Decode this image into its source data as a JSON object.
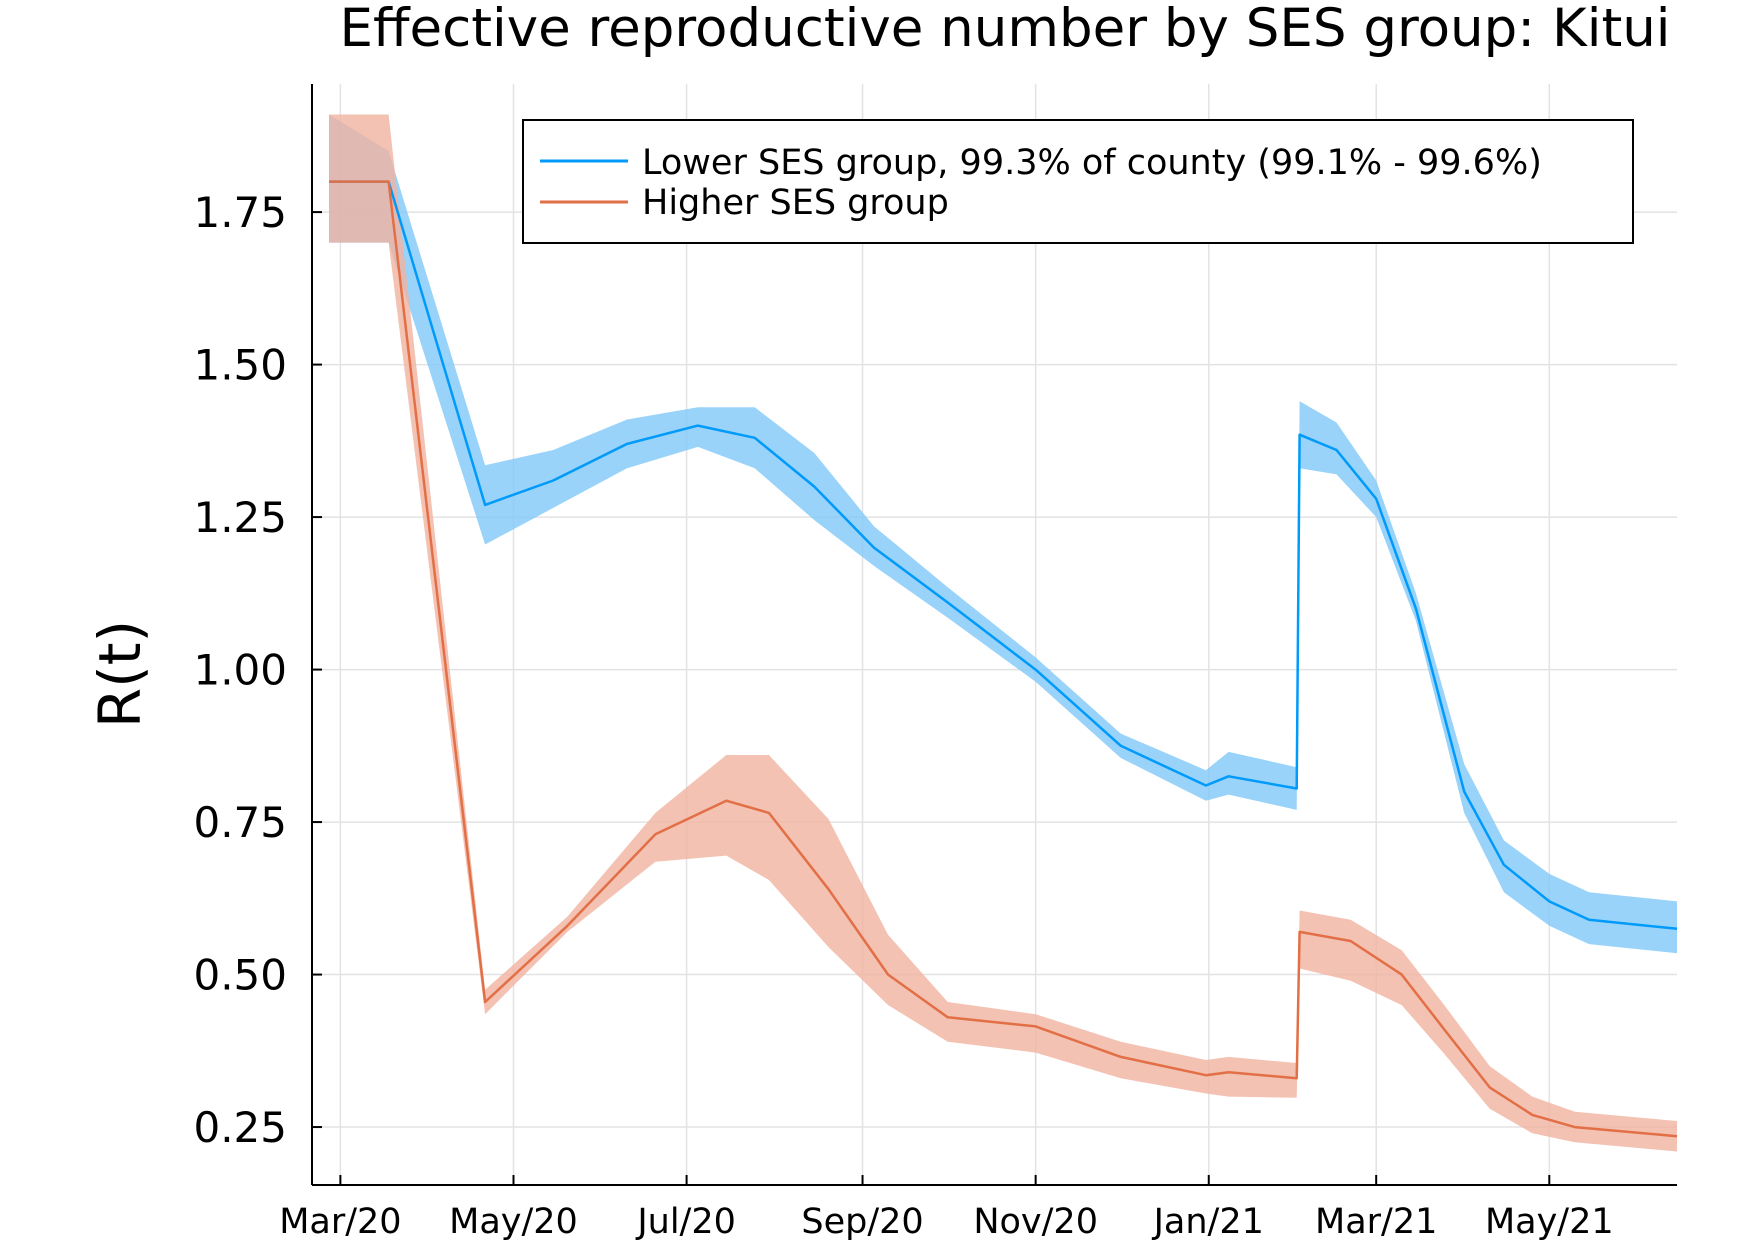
{
  "chart_data": {
    "type": "line",
    "title": "Effective reproductive number by SES group: Kitui",
    "xlabel": "",
    "ylabel": "R(t)",
    "xlim": [
      "2020-02-20",
      "2021-06-15"
    ],
    "ylim": [
      0.155,
      1.96
    ],
    "x_ticks": [
      {
        "date": "2020-03-01",
        "label": "Mar/20"
      },
      {
        "date": "2020-05-01",
        "label": "May/20"
      },
      {
        "date": "2020-07-01",
        "label": "Jul/20"
      },
      {
        "date": "2020-09-01",
        "label": "Sep/20"
      },
      {
        "date": "2020-11-01",
        "label": "Nov/20"
      },
      {
        "date": "2021-01-01",
        "label": "Jan/21"
      },
      {
        "date": "2021-03-01",
        "label": "Mar/21"
      },
      {
        "date": "2021-05-01",
        "label": "May/21"
      }
    ],
    "y_ticks": [
      {
        "value": 0.25,
        "label": "0.25"
      },
      {
        "value": 0.5,
        "label": "0.50"
      },
      {
        "value": 0.75,
        "label": "0.75"
      },
      {
        "value": 1.0,
        "label": "1.00"
      },
      {
        "value": 1.25,
        "label": "1.25"
      },
      {
        "value": 1.5,
        "label": "1.50"
      },
      {
        "value": 1.75,
        "label": "1.75"
      }
    ],
    "grid": true,
    "legend_position": "top-right",
    "series": [
      {
        "name": "Lower SES group, 99.3% of county (99.1% - 99.6%)",
        "color": "#009AFA",
        "band_color": "#7FC8F8",
        "points": [
          {
            "x": "2020-02-26",
            "y": 1.8,
            "lo": 1.7,
            "hi": 1.91
          },
          {
            "x": "2020-03-18",
            "y": 1.8,
            "lo": 1.7,
            "hi": 1.85
          },
          {
            "x": "2020-04-21",
            "y": 1.27,
            "lo": 1.205,
            "hi": 1.335
          },
          {
            "x": "2020-05-15",
            "y": 1.31,
            "lo": 1.265,
            "hi": 1.36
          },
          {
            "x": "2020-06-10",
            "y": 1.37,
            "lo": 1.33,
            "hi": 1.41
          },
          {
            "x": "2020-07-05",
            "y": 1.4,
            "lo": 1.365,
            "hi": 1.43
          },
          {
            "x": "2020-07-25",
            "y": 1.38,
            "lo": 1.33,
            "hi": 1.43
          },
          {
            "x": "2020-08-15",
            "y": 1.3,
            "lo": 1.245,
            "hi": 1.355
          },
          {
            "x": "2020-09-05",
            "y": 1.2,
            "lo": 1.17,
            "hi": 1.235
          },
          {
            "x": "2020-10-01",
            "y": 1.11,
            "lo": 1.085,
            "hi": 1.135
          },
          {
            "x": "2020-11-01",
            "y": 1.0,
            "lo": 0.98,
            "hi": 1.02
          },
          {
            "x": "2020-12-01",
            "y": 0.875,
            "lo": 0.855,
            "hi": 0.895
          },
          {
            "x": "2020-12-31",
            "y": 0.81,
            "lo": 0.785,
            "hi": 0.835
          },
          {
            "x": "2021-01-08",
            "y": 0.825,
            "lo": 0.795,
            "hi": 0.865
          },
          {
            "x": "2021-02-01",
            "y": 0.805,
            "lo": 0.77,
            "hi": 0.84
          },
          {
            "x": "2021-02-02",
            "y": 1.385,
            "lo": 1.33,
            "hi": 1.44
          },
          {
            "x": "2021-02-15",
            "y": 1.36,
            "lo": 1.32,
            "hi": 1.405
          },
          {
            "x": "2021-03-01",
            "y": 1.28,
            "lo": 1.25,
            "hi": 1.31
          },
          {
            "x": "2021-03-15",
            "y": 1.1,
            "lo": 1.08,
            "hi": 1.125
          },
          {
            "x": "2021-04-01",
            "y": 0.8,
            "lo": 0.765,
            "hi": 0.845
          },
          {
            "x": "2021-04-15",
            "y": 0.68,
            "lo": 0.635,
            "hi": 0.72
          },
          {
            "x": "2021-05-01",
            "y": 0.62,
            "lo": 0.58,
            "hi": 0.665
          },
          {
            "x": "2021-05-15",
            "y": 0.59,
            "lo": 0.55,
            "hi": 0.635
          },
          {
            "x": "2021-06-15",
            "y": 0.575,
            "lo": 0.535,
            "hi": 0.62
          }
        ]
      },
      {
        "name": "Higher SES group",
        "color": "#E26F46",
        "band_color": "#F0B3A0",
        "points": [
          {
            "x": "2020-02-26",
            "y": 1.8,
            "lo": 1.7,
            "hi": 1.91
          },
          {
            "x": "2020-03-18",
            "y": 1.8,
            "lo": 1.7,
            "hi": 1.91
          },
          {
            "x": "2020-04-21",
            "y": 0.455,
            "lo": 0.435,
            "hi": 0.475
          },
          {
            "x": "2020-05-20",
            "y": 0.58,
            "lo": 0.57,
            "hi": 0.595
          },
          {
            "x": "2020-06-20",
            "y": 0.73,
            "lo": 0.685,
            "hi": 0.765
          },
          {
            "x": "2020-07-15",
            "y": 0.785,
            "lo": 0.695,
            "hi": 0.86
          },
          {
            "x": "2020-07-30",
            "y": 0.765,
            "lo": 0.655,
            "hi": 0.86
          },
          {
            "x": "2020-08-20",
            "y": 0.64,
            "lo": 0.545,
            "hi": 0.755
          },
          {
            "x": "2020-09-10",
            "y": 0.5,
            "lo": 0.45,
            "hi": 0.565
          },
          {
            "x": "2020-10-01",
            "y": 0.43,
            "lo": 0.39,
            "hi": 0.455
          },
          {
            "x": "2020-11-01",
            "y": 0.415,
            "lo": 0.372,
            "hi": 0.435
          },
          {
            "x": "2020-12-01",
            "y": 0.365,
            "lo": 0.33,
            "hi": 0.39
          },
          {
            "x": "2020-12-31",
            "y": 0.335,
            "lo": 0.305,
            "hi": 0.36
          },
          {
            "x": "2021-01-08",
            "y": 0.34,
            "lo": 0.3,
            "hi": 0.365
          },
          {
            "x": "2021-02-01",
            "y": 0.33,
            "lo": 0.298,
            "hi": 0.355
          },
          {
            "x": "2021-02-02",
            "y": 0.57,
            "lo": 0.51,
            "hi": 0.605
          },
          {
            "x": "2021-02-20",
            "y": 0.555,
            "lo": 0.49,
            "hi": 0.59
          },
          {
            "x": "2021-03-10",
            "y": 0.5,
            "lo": 0.45,
            "hi": 0.54
          },
          {
            "x": "2021-03-25",
            "y": 0.41,
            "lo": 0.37,
            "hi": 0.45
          },
          {
            "x": "2021-04-10",
            "y": 0.315,
            "lo": 0.28,
            "hi": 0.35
          },
          {
            "x": "2021-04-25",
            "y": 0.27,
            "lo": 0.24,
            "hi": 0.3
          },
          {
            "x": "2021-05-10",
            "y": 0.25,
            "lo": 0.225,
            "hi": 0.275
          },
          {
            "x": "2021-06-15",
            "y": 0.235,
            "lo": 0.21,
            "hi": 0.26
          }
        ]
      }
    ]
  }
}
